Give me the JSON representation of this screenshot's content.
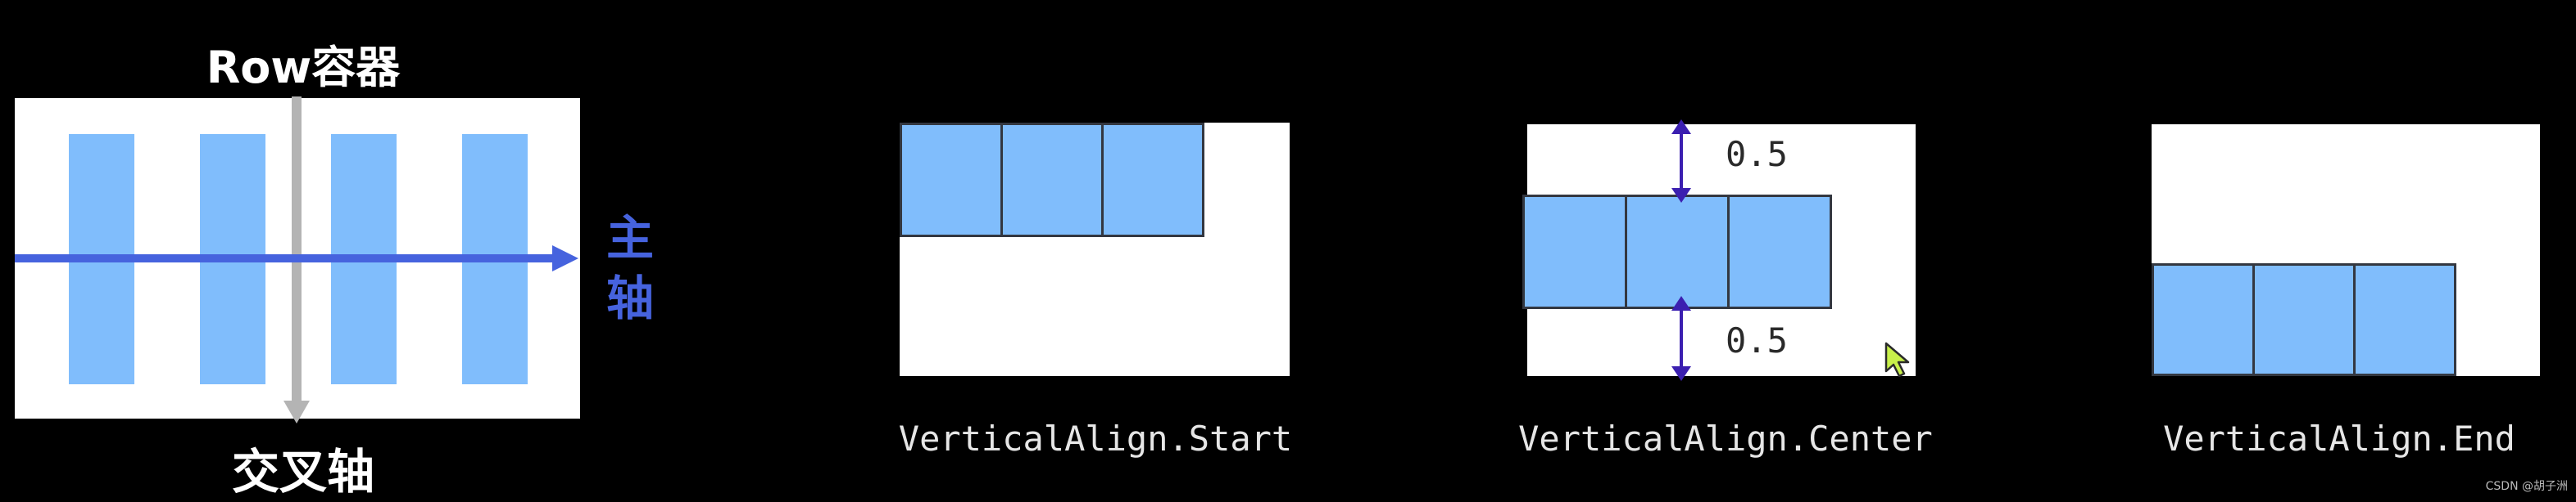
{
  "row_diagram": {
    "title": "Row容器",
    "main_axis_label": "主轴",
    "cross_axis_label": "交叉轴",
    "colors": {
      "item": "#80bdfc",
      "main_axis": "#4663de",
      "cross_axis": "#b4b4b4"
    }
  },
  "examples": [
    {
      "caption": "VerticalAlign.Start",
      "align": "start"
    },
    {
      "caption": "VerticalAlign.Center",
      "align": "center",
      "top_gap": "0.5",
      "bottom_gap": "0.5"
    },
    {
      "caption": "VerticalAlign.End",
      "align": "end"
    }
  ],
  "colors": {
    "cell_fill": "#80bdfc",
    "cell_border": "#333740",
    "arrow": "#3b1fb0",
    "cursor": "#c8f04a"
  },
  "watermark": "CSDN @胡子洲"
}
